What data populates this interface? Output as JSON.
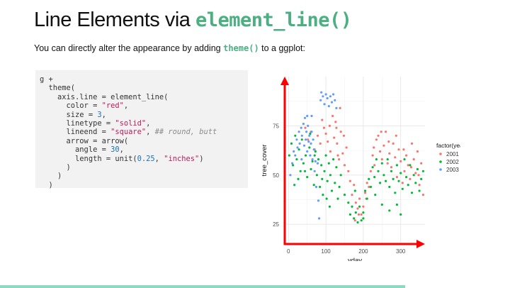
{
  "slide": {
    "title_plain": "Line Elements via ",
    "title_code": "element_line()",
    "subtitle_pre": "You can directly alter the appearance by adding ",
    "subtitle_code": "theme()",
    "subtitle_post": " to a ggplot:"
  },
  "code_lines": [
    [
      {
        "t": "g +",
        "c": ""
      }
    ],
    [
      {
        "t": "  theme(",
        "c": ""
      }
    ],
    [
      {
        "t": "    axis.line = element_line(",
        "c": ""
      }
    ],
    [
      {
        "t": "      color = ",
        "c": ""
      },
      {
        "t": "\"red\"",
        "c": "str"
      },
      {
        "t": ",",
        "c": ""
      }
    ],
    [
      {
        "t": "      size = ",
        "c": ""
      },
      {
        "t": "3",
        "c": "num"
      },
      {
        "t": ",",
        "c": ""
      }
    ],
    [
      {
        "t": "      linetype = ",
        "c": ""
      },
      {
        "t": "\"solid\"",
        "c": "str"
      },
      {
        "t": ",",
        "c": ""
      }
    ],
    [
      {
        "t": "      lineend = ",
        "c": ""
      },
      {
        "t": "\"square\"",
        "c": "str"
      },
      {
        "t": ", ",
        "c": ""
      },
      {
        "t": "## round, butt",
        "c": "cmt"
      }
    ],
    [
      {
        "t": "      arrow = arrow(",
        "c": ""
      }
    ],
    [
      {
        "t": "        angle = ",
        "c": ""
      },
      {
        "t": "30",
        "c": "num"
      },
      {
        "t": ",",
        "c": ""
      }
    ],
    [
      {
        "t": "        length = unit(",
        "c": ""
      },
      {
        "t": "0.25",
        "c": "num"
      },
      {
        "t": ", ",
        "c": ""
      },
      {
        "t": "\"inches\"",
        "c": "str"
      },
      {
        "t": ")",
        "c": ""
      }
    ],
    [
      {
        "t": "      )",
        "c": ""
      }
    ],
    [
      {
        "t": "    )",
        "c": ""
      }
    ],
    [
      {
        "t": "  )",
        "c": ""
      }
    ]
  ],
  "chart_data": {
    "type": "scatter",
    "xlabel": "yday",
    "ylabel": "tree_cover",
    "xlim": [
      -10,
      365
    ],
    "ylim": [
      15,
      100
    ],
    "x_ticks": [
      0,
      100,
      200,
      300
    ],
    "y_ticks": [
      25,
      50,
      75
    ],
    "grid": true,
    "legend": {
      "title": "factor(year)",
      "position": "right"
    },
    "axis_line_color": "#ff0000",
    "series": [
      {
        "name": "2001",
        "color": "#f8766d",
        "points": [
          [
            45,
            74
          ],
          [
            52,
            68
          ],
          [
            60,
            72
          ],
          [
            70,
            63
          ],
          [
            78,
            70
          ],
          [
            85,
            66
          ],
          [
            90,
            78
          ],
          [
            95,
            74
          ],
          [
            100,
            71
          ],
          [
            105,
            67
          ],
          [
            110,
            75
          ],
          [
            112,
            62
          ],
          [
            118,
            80
          ],
          [
            122,
            69
          ],
          [
            126,
            77
          ],
          [
            130,
            66
          ],
          [
            135,
            58
          ],
          [
            140,
            72
          ],
          [
            145,
            61
          ],
          [
            150,
            55
          ],
          [
            155,
            64
          ],
          [
            160,
            52
          ],
          [
            165,
            47
          ],
          [
            170,
            40
          ],
          [
            175,
            45
          ],
          [
            180,
            36
          ],
          [
            185,
            33
          ],
          [
            190,
            38
          ],
          [
            195,
            30
          ],
          [
            200,
            34
          ],
          [
            205,
            41
          ],
          [
            210,
            46
          ],
          [
            215,
            44
          ],
          [
            220,
            52
          ],
          [
            225,
            60
          ],
          [
            230,
            55
          ],
          [
            235,
            68
          ],
          [
            240,
            70
          ],
          [
            245,
            62
          ],
          [
            250,
            58
          ],
          [
            255,
            65
          ],
          [
            260,
            72
          ],
          [
            265,
            56
          ],
          [
            270,
            61
          ],
          [
            275,
            54
          ],
          [
            280,
            66
          ],
          [
            285,
            59
          ],
          [
            290,
            49
          ],
          [
            295,
            63
          ],
          [
            300,
            57
          ],
          [
            305,
            46
          ],
          [
            310,
            52
          ],
          [
            315,
            60
          ],
          [
            320,
            55
          ],
          [
            325,
            48
          ],
          [
            330,
            66
          ],
          [
            335,
            58
          ],
          [
            340,
            51
          ],
          [
            345,
            62
          ],
          [
            350,
            45
          ],
          [
            355,
            56
          ],
          [
            360,
            40
          ],
          [
            128,
            74
          ],
          [
            138,
            84
          ],
          [
            148,
            70
          ],
          [
            132,
            60
          ],
          [
            178,
            27
          ],
          [
            188,
            30
          ],
          [
            208,
            38
          ],
          [
            228,
            64
          ],
          [
            248,
            72
          ],
          [
            268,
            67
          ],
          [
            288,
            70
          ],
          [
            308,
            63
          ],
          [
            328,
            54
          ],
          [
            348,
            50
          ]
        ]
      },
      {
        "name": "2002",
        "color": "#00ba38",
        "points": [
          [
            2,
            60
          ],
          [
            8,
            66
          ],
          [
            12,
            55
          ],
          [
            18,
            70
          ],
          [
            22,
            58
          ],
          [
            28,
            63
          ],
          [
            32,
            52
          ],
          [
            36,
            68
          ],
          [
            40,
            56
          ],
          [
            46,
            60
          ],
          [
            50,
            49
          ],
          [
            56,
            64
          ],
          [
            60,
            53
          ],
          [
            64,
            57
          ],
          [
            68,
            45
          ],
          [
            72,
            62
          ],
          [
            76,
            50
          ],
          [
            80,
            58
          ],
          [
            84,
            44
          ],
          [
            88,
            55
          ],
          [
            92,
            40
          ],
          [
            96,
            52
          ],
          [
            100,
            60
          ],
          [
            104,
            47
          ],
          [
            108,
            56
          ],
          [
            112,
            50
          ],
          [
            116,
            42
          ],
          [
            120,
            58
          ],
          [
            124,
            46
          ],
          [
            128,
            54
          ],
          [
            132,
            38
          ],
          [
            136,
            44
          ],
          [
            140,
            50
          ],
          [
            150,
            40
          ],
          [
            160,
            36
          ],
          [
            165,
            30
          ],
          [
            170,
            34
          ],
          [
            175,
            28
          ],
          [
            180,
            31
          ],
          [
            185,
            26
          ],
          [
            190,
            34
          ],
          [
            195,
            27
          ],
          [
            200,
            31
          ],
          [
            205,
            42
          ],
          [
            210,
            38
          ],
          [
            215,
            48
          ],
          [
            220,
            44
          ],
          [
            225,
            54
          ],
          [
            230,
            49
          ],
          [
            235,
            58
          ],
          [
            240,
            52
          ],
          [
            245,
            46
          ],
          [
            250,
            56
          ],
          [
            255,
            50
          ],
          [
            260,
            47
          ],
          [
            265,
            58
          ],
          [
            270,
            44
          ],
          [
            275,
            52
          ],
          [
            280,
            48
          ],
          [
            285,
            41
          ],
          [
            290,
            55
          ],
          [
            295,
            47
          ],
          [
            300,
            51
          ],
          [
            305,
            43
          ],
          [
            310,
            58
          ],
          [
            315,
            49
          ],
          [
            320,
            45
          ],
          [
            325,
            55
          ],
          [
            330,
            41
          ],
          [
            335,
            50
          ],
          [
            340,
            46
          ],
          [
            345,
            53
          ],
          [
            350,
            42
          ],
          [
            355,
            48
          ],
          [
            360,
            52
          ],
          [
            270,
            32
          ],
          [
            290,
            35
          ],
          [
            300,
            30
          ],
          [
            250,
            35
          ],
          [
            232,
            40
          ],
          [
            200,
            28
          ],
          [
            178,
            42
          ],
          [
            102,
            38
          ],
          [
            90,
            48
          ],
          [
            70,
            60
          ],
          [
            58,
            71
          ],
          [
            16,
            45
          ],
          [
            26,
            48
          ],
          [
            44,
            52
          ],
          [
            110,
            34
          ]
        ]
      },
      {
        "name": "2003",
        "color": "#619cff",
        "points": [
          [
            5,
            50
          ],
          [
            10,
            56
          ],
          [
            14,
            62
          ],
          [
            18,
            60
          ],
          [
            22,
            68
          ],
          [
            24,
            64
          ],
          [
            28,
            72
          ],
          [
            30,
            66
          ],
          [
            34,
            74
          ],
          [
            36,
            70
          ],
          [
            40,
            76
          ],
          [
            42,
            65
          ],
          [
            44,
            79
          ],
          [
            46,
            68
          ],
          [
            48,
            72
          ],
          [
            50,
            62
          ],
          [
            52,
            75
          ],
          [
            54,
            67
          ],
          [
            56,
            70
          ],
          [
            58,
            60
          ],
          [
            60,
            66
          ],
          [
            62,
            72
          ],
          [
            64,
            58
          ],
          [
            66,
            68
          ],
          [
            68,
            63
          ],
          [
            70,
            52
          ],
          [
            72,
            57
          ],
          [
            74,
            44
          ],
          [
            80,
            37
          ],
          [
            82,
            28
          ],
          [
            86,
            88
          ],
          [
            88,
            92
          ],
          [
            92,
            90
          ],
          [
            96,
            86
          ],
          [
            100,
            91
          ],
          [
            104,
            89
          ],
          [
            108,
            85
          ],
          [
            112,
            90
          ],
          [
            116,
            87
          ],
          [
            120,
            91
          ],
          [
            124,
            88
          ],
          [
            128,
            84
          ],
          [
            35,
            58
          ],
          [
            50,
            80
          ],
          [
            62,
            80
          ],
          [
            78,
            56
          ]
        ]
      }
    ]
  }
}
